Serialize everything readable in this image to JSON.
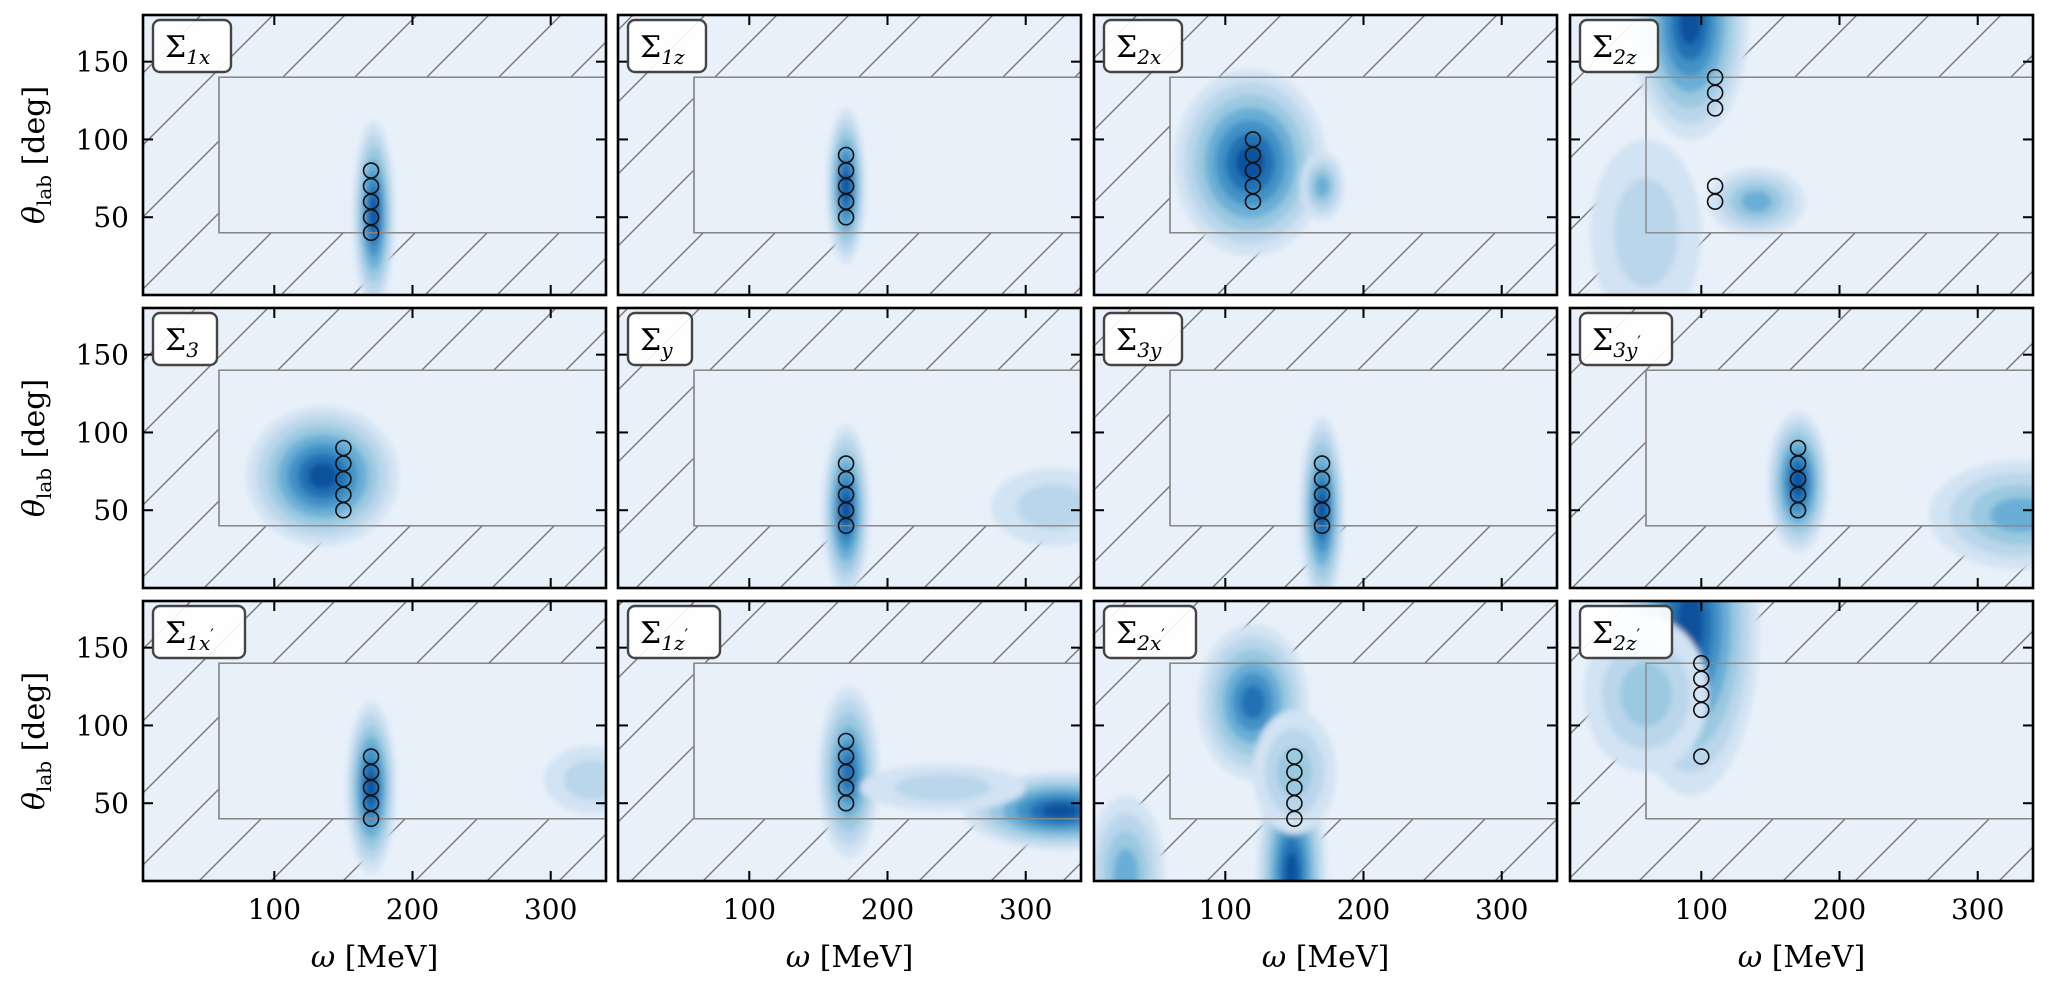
{
  "chart_data": {
    "type": "contour-grid",
    "rows": 3,
    "cols": 4,
    "xlabel": "ω [MeV]",
    "ylabel": "θ_lab [deg]",
    "x_ticks": [
      100,
      200,
      300
    ],
    "y_ticks": [
      50,
      100,
      150
    ],
    "xlim": [
      5,
      340
    ],
    "ylim": [
      0,
      180
    ],
    "valid_region": {
      "x": [
        60,
        340
      ],
      "y": [
        40,
        140
      ]
    },
    "colors": {
      "levels": [
        "#e8f0fa",
        "#d2e3f3",
        "#bad6eb",
        "#9ac9e0",
        "#6aaed6",
        "#4292c6",
        "#2171b5",
        "#08519c"
      ],
      "hatch": "#777777",
      "box": "#888888"
    },
    "panels": [
      {
        "base": "Σ",
        "sub": "1x",
        "prime": false,
        "points": [
          [
            170,
            40
          ],
          [
            170,
            50
          ],
          [
            170,
            60
          ],
          [
            170,
            70
          ],
          [
            170,
            80
          ]
        ],
        "blobs": [
          {
            "cx": 172,
            "cy": 52,
            "rx": 15,
            "ry": 60,
            "rot": 0,
            "a": 1.0
          }
        ]
      },
      {
        "base": "Σ",
        "sub": "1z",
        "prime": false,
        "points": [
          [
            170,
            50
          ],
          [
            170,
            60
          ],
          [
            170,
            70
          ],
          [
            170,
            80
          ],
          [
            170,
            90
          ]
        ],
        "blobs": [
          {
            "cx": 170,
            "cy": 70,
            "rx": 14,
            "ry": 50,
            "rot": 0,
            "a": 0.95
          }
        ]
      },
      {
        "base": "Σ",
        "sub": "2x",
        "prime": false,
        "points": [
          [
            120,
            60
          ],
          [
            120,
            70
          ],
          [
            120,
            80
          ],
          [
            120,
            90
          ],
          [
            120,
            100
          ]
        ],
        "blobs": [
          {
            "cx": 118,
            "cy": 85,
            "rx": 55,
            "ry": 60,
            "rot": 0,
            "a": 1.05
          },
          {
            "cx": 170,
            "cy": 70,
            "rx": 16,
            "ry": 22,
            "rot": 0,
            "a": 0.55
          }
        ]
      },
      {
        "base": "Σ",
        "sub": "2z",
        "prime": false,
        "points": [
          [
            110,
            60
          ],
          [
            110,
            70
          ],
          [
            110,
            120
          ],
          [
            110,
            130
          ],
          [
            110,
            140
          ]
        ],
        "blobs": [
          {
            "cx": 92,
            "cy": 175,
            "rx": 42,
            "ry": 75,
            "rot": 0,
            "a": 1.05
          },
          {
            "cx": 140,
            "cy": 60,
            "rx": 35,
            "ry": 22,
            "rot": 0,
            "a": 0.6
          },
          {
            "cx": 60,
            "cy": 40,
            "rx": 40,
            "ry": 60,
            "rot": 0,
            "a": 0.35
          }
        ]
      },
      {
        "base": "Σ",
        "sub": "3",
        "prime": false,
        "points": [
          [
            150,
            50
          ],
          [
            150,
            60
          ],
          [
            150,
            70
          ],
          [
            150,
            80
          ],
          [
            150,
            90
          ]
        ],
        "blobs": [
          {
            "cx": 135,
            "cy": 72,
            "rx": 55,
            "ry": 45,
            "rot": 0,
            "a": 1.0
          }
        ]
      },
      {
        "base": "Σ",
        "sub": "y",
        "prime": false,
        "points": [
          [
            170,
            40
          ],
          [
            170,
            50
          ],
          [
            170,
            60
          ],
          [
            170,
            70
          ],
          [
            170,
            80
          ]
        ],
        "blobs": [
          {
            "cx": 170,
            "cy": 50,
            "rx": 17,
            "ry": 55,
            "rot": 0,
            "a": 1.0
          },
          {
            "cx": 320,
            "cy": 52,
            "rx": 45,
            "ry": 25,
            "rot": 0,
            "a": 0.35
          }
        ]
      },
      {
        "base": "Σ",
        "sub": "3y",
        "prime": false,
        "points": [
          [
            170,
            40
          ],
          [
            170,
            50
          ],
          [
            170,
            60
          ],
          [
            170,
            70
          ],
          [
            170,
            80
          ]
        ],
        "blobs": [
          {
            "cx": 170,
            "cy": 50,
            "rx": 16,
            "ry": 60,
            "rot": 0,
            "a": 1.0
          }
        ]
      },
      {
        "base": "Σ",
        "sub": "3y",
        "prime": true,
        "points": [
          [
            170,
            50
          ],
          [
            170,
            60
          ],
          [
            170,
            70
          ],
          [
            170,
            80
          ],
          [
            170,
            90
          ]
        ],
        "blobs": [
          {
            "cx": 170,
            "cy": 68,
            "rx": 22,
            "ry": 45,
            "rot": 0,
            "a": 1.0
          },
          {
            "cx": 330,
            "cy": 47,
            "rx": 65,
            "ry": 35,
            "rot": 0,
            "a": 0.6
          }
        ]
      },
      {
        "base": "Σ",
        "sub": "1x",
        "prime": true,
        "points": [
          [
            170,
            40
          ],
          [
            170,
            50
          ],
          [
            170,
            60
          ],
          [
            170,
            70
          ],
          [
            170,
            80
          ]
        ],
        "blobs": [
          {
            "cx": 170,
            "cy": 60,
            "rx": 18,
            "ry": 55,
            "rot": 0,
            "a": 1.0
          },
          {
            "cx": 330,
            "cy": 65,
            "rx": 35,
            "ry": 22,
            "rot": 0,
            "a": 0.3
          }
        ]
      },
      {
        "base": "Σ",
        "sub": "1z",
        "prime": true,
        "points": [
          [
            170,
            50
          ],
          [
            170,
            60
          ],
          [
            170,
            70
          ],
          [
            170,
            80
          ],
          [
            170,
            90
          ]
        ],
        "blobs": [
          {
            "cx": 172,
            "cy": 70,
            "rx": 22,
            "ry": 55,
            "rot": 0,
            "a": 0.9
          },
          {
            "cx": 325,
            "cy": 45,
            "rx": 70,
            "ry": 25,
            "rot": 0,
            "a": 0.95
          },
          {
            "cx": 240,
            "cy": 60,
            "rx": 60,
            "ry": 15,
            "rot": 0,
            "a": 0.3
          }
        ]
      },
      {
        "base": "Σ",
        "sub": "2x",
        "prime": true,
        "points": [
          [
            150,
            40
          ],
          [
            150,
            50
          ],
          [
            150,
            60
          ],
          [
            150,
            70
          ],
          [
            150,
            80
          ]
        ],
        "blobs": [
          {
            "cx": 148,
            "cy": 5,
            "rx": 25,
            "ry": 70,
            "rot": 0,
            "a": 1.05
          },
          {
            "cx": 120,
            "cy": 115,
            "rx": 40,
            "ry": 50,
            "rot": 0,
            "a": 0.8
          },
          {
            "cx": 28,
            "cy": 5,
            "rx": 28,
            "ry": 50,
            "rot": 0,
            "a": 0.6
          },
          {
            "cx": 150,
            "cy": 70,
            "rx": 30,
            "ry": 40,
            "rot": 0,
            "a": 0.45
          }
        ]
      },
      {
        "base": "Σ",
        "sub": "2z",
        "prime": true,
        "points": [
          [
            100,
            80
          ],
          [
            100,
            110
          ],
          [
            100,
            120
          ],
          [
            100,
            130
          ],
          [
            100,
            140
          ]
        ],
        "blobs": [
          {
            "cx": 92,
            "cy": 165,
            "rx": 50,
            "ry": 110,
            "rot": 0,
            "a": 1.05
          },
          {
            "cx": 60,
            "cy": 120,
            "rx": 45,
            "ry": 50,
            "rot": 0,
            "a": 0.4
          }
        ]
      }
    ]
  }
}
